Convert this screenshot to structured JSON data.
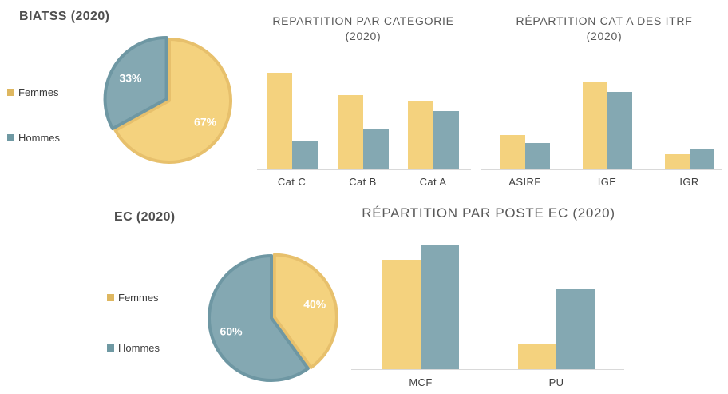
{
  "colors": {
    "background": "#FFFFFF",
    "femmes_fill": "#F4D27E",
    "femmes_border": "#E7C06C",
    "femmes_legend": "#DEB760",
    "hommes_fill": "#84A8B2",
    "hommes_border": "#6E97A3",
    "hommes_legend": "#6F99A3",
    "title_text": "#595959",
    "panel_title_text": "#4F4F4F",
    "axis_label_text": "#3F3F3F",
    "axis_line": "#D9D9D9",
    "pct_label_text": "#FFFFFF"
  },
  "legend": {
    "femmes": "Femmes",
    "hommes": "Hommes"
  },
  "panels": {
    "biatss": {
      "title": "BIATSS (2020)"
    },
    "ec": {
      "title": "EC (2020)"
    }
  },
  "chart_data": [
    {
      "id": "biatss-pie",
      "type": "pie",
      "title": "BIATSS (2020)",
      "labels": [
        "Femmes",
        "Hommes"
      ],
      "values": [
        67,
        33
      ],
      "value_labels": [
        "67%",
        "33%"
      ],
      "start_angle_deg": 0,
      "direction": "clockwise",
      "legend_position": "left"
    },
    {
      "id": "categorie-bar",
      "type": "bar",
      "title": "REPARTITION PAR CATEGORIE (2020)",
      "title_lines": [
        "REPARTITION PAR CATEGORIE",
        "(2020)"
      ],
      "categories": [
        "Cat C",
        "Cat B",
        "Cat A"
      ],
      "series": [
        {
          "name": "Femmes",
          "values": [
            100,
            77,
            70
          ]
        },
        {
          "name": "Hommes",
          "values": [
            30,
            41,
            60
          ]
        }
      ],
      "ylim": [
        0,
        100
      ],
      "grid": false,
      "legend_position": "none"
    },
    {
      "id": "itrf-bar",
      "type": "bar",
      "title": "RÉPARTITION CAT A DES ITRF (2020)",
      "title_lines": [
        "RÉPARTITION CAT A DES ITRF",
        "(2020)"
      ],
      "categories": [
        "ASIRF",
        "IGE",
        "IGR"
      ],
      "series": [
        {
          "name": "Femmes",
          "values": [
            39,
            100,
            17
          ]
        },
        {
          "name": "Hommes",
          "values": [
            30,
            88,
            23
          ]
        }
      ],
      "ylim": [
        0,
        100
      ],
      "grid": false,
      "legend_position": "none"
    },
    {
      "id": "ec-pie",
      "type": "pie",
      "title": "EC (2020)",
      "labels": [
        "Femmes",
        "Hommes"
      ],
      "values": [
        40,
        60
      ],
      "value_labels": [
        "40%",
        "60%"
      ],
      "start_angle_deg": 0,
      "direction": "clockwise",
      "legend_position": "left"
    },
    {
      "id": "poste-bar",
      "type": "bar",
      "title": "RÉPARTITION PAR POSTE EC (2020)",
      "title_lines": [
        "RÉPARTITION PAR POSTE EC (2020)"
      ],
      "categories": [
        "MCF",
        "PU"
      ],
      "series": [
        {
          "name": "Femmes",
          "values": [
            88,
            20
          ]
        },
        {
          "name": "Hommes",
          "values": [
            100,
            64
          ]
        }
      ],
      "ylim": [
        0,
        100
      ],
      "grid": false,
      "legend_position": "none"
    }
  ]
}
